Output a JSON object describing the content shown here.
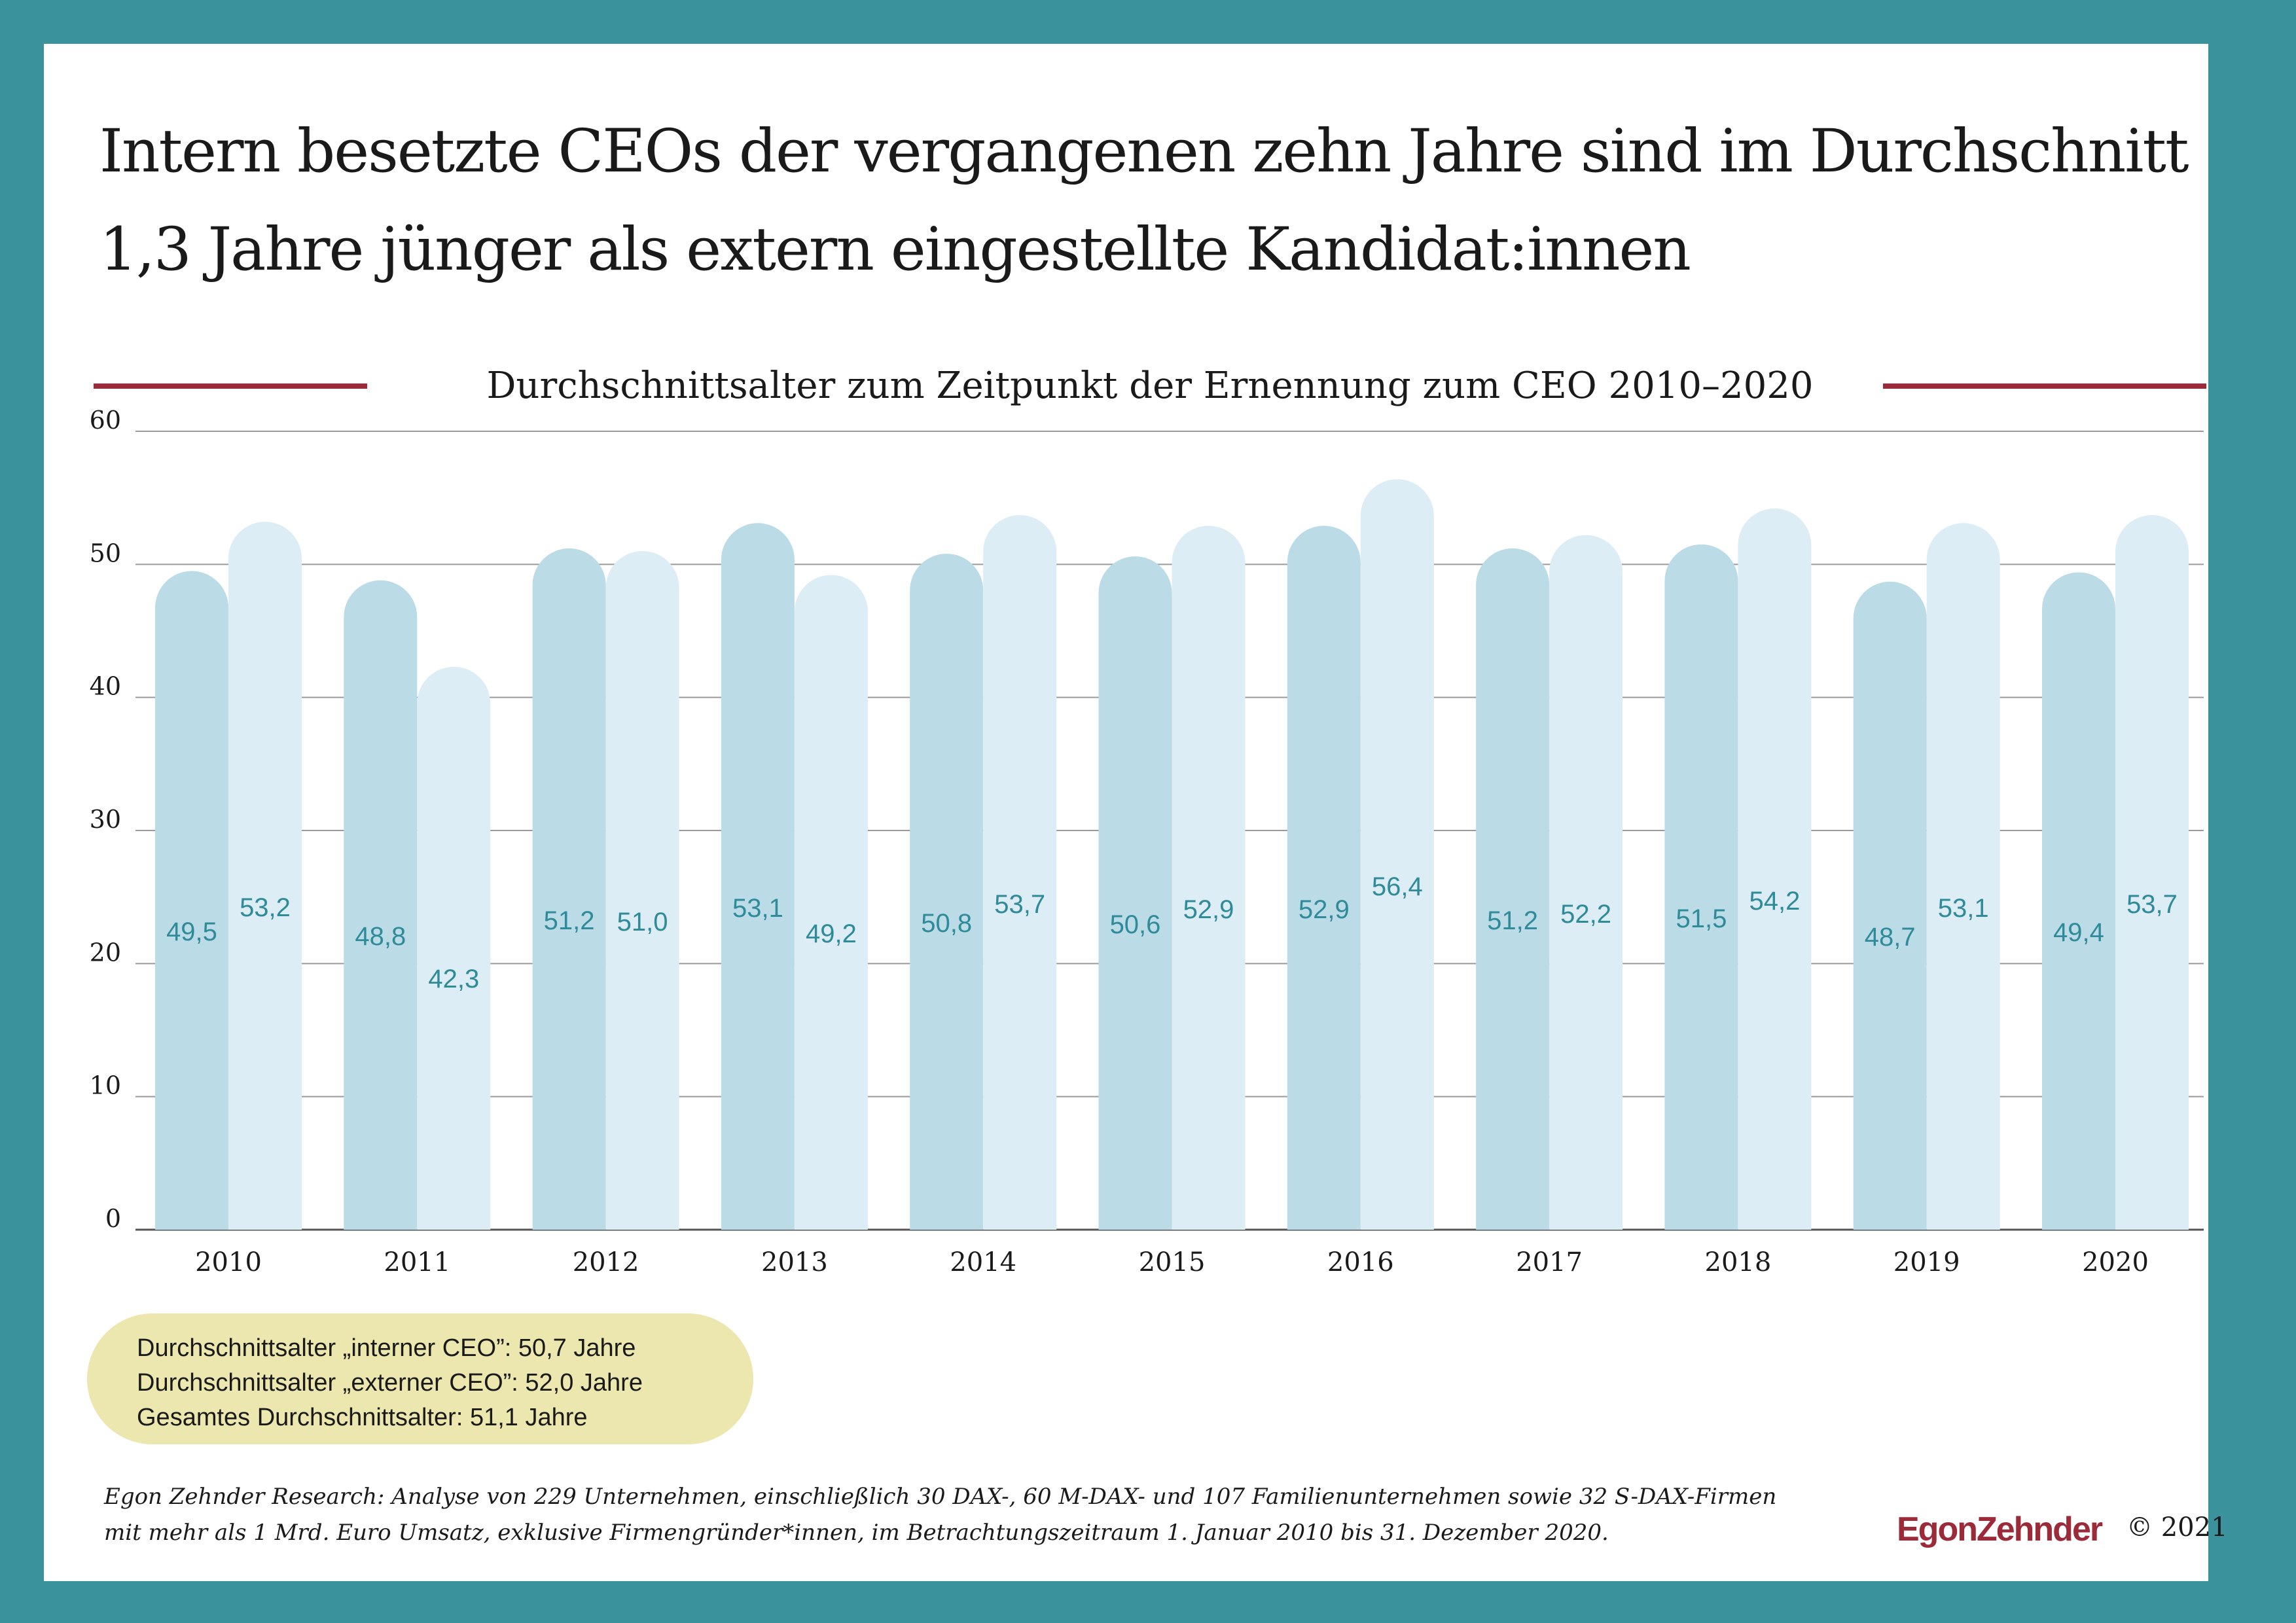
{
  "title": {
    "line1": "Intern besetzte CEOs der vergangenen zehn Jahre sind im Durchschnitt",
    "line2": "1,3 Jahre jünger als extern eingestellte Kandidat:innen"
  },
  "colors": {
    "frame": "#3a929d",
    "accent_rule": "#9c2b3a",
    "internal_bar": "#bbdce7",
    "external_bar": "#ddedf5",
    "value_label": "#2f8a99",
    "legend_bg": "#ebe7af",
    "brand": "#9c2b3a"
  },
  "chart_data": {
    "type": "bar",
    "title": "Durchschnittsalter zum Zeitpunkt der Ernennung zum CEO 2010–2020",
    "categories": [
      "2010",
      "2011",
      "2012",
      "2013",
      "2014",
      "2015",
      "2016",
      "2017",
      "2018",
      "2019",
      "2020"
    ],
    "series": [
      {
        "values": [
          49.5,
          48.8,
          51.2,
          53.1,
          50.8,
          50.6,
          52.9,
          51.2,
          51.5,
          48.7,
          49.4
        ],
        "labels": [
          "49,5",
          "48,8",
          "51,2",
          "53,1",
          "50,8",
          "50,6",
          "52,9",
          "51,2",
          "51,5",
          "48,7",
          "49,4"
        ]
      },
      {
        "values": [
          53.2,
          42.3,
          51.0,
          49.2,
          53.7,
          52.9,
          56.4,
          52.2,
          54.2,
          53.1,
          53.7
        ],
        "labels": [
          "53,2",
          "42,3",
          "51,0",
          "49,2",
          "53,7",
          "52,9",
          "56,4",
          "52,2",
          "54,2",
          "53,1",
          "53,7"
        ]
      }
    ],
    "yticks": [
      "0",
      "10",
      "20",
      "30",
      "40",
      "50",
      "60"
    ],
    "ylim": [
      0,
      60
    ],
    "grid": true
  },
  "legend": {
    "line1": "Durchschnittsalter „interner CEO”: 50,7 Jahre",
    "line2": "Durchschnittsalter „externer CEO”: 52,0 Jahre",
    "line3": "Gesamtes Durchschnittsalter: 51,1 Jahre"
  },
  "note": {
    "line1": "Egon Zehnder Research: Analyse von 229 Unternehmen, einschließlich 30 DAX-, 60 M-DAX- und 107 Familienunternehmen sowie 32 S-DAX-Firmen",
    "line2": "mit mehr als 1 Mrd. Euro Umsatz, exklusive Firmengründer*innen, im Betrachtungszeitraum 1. Januar 2010 bis 31. Dezember 2020."
  },
  "brand": "EgonZehnder",
  "copyright": "© 2021"
}
